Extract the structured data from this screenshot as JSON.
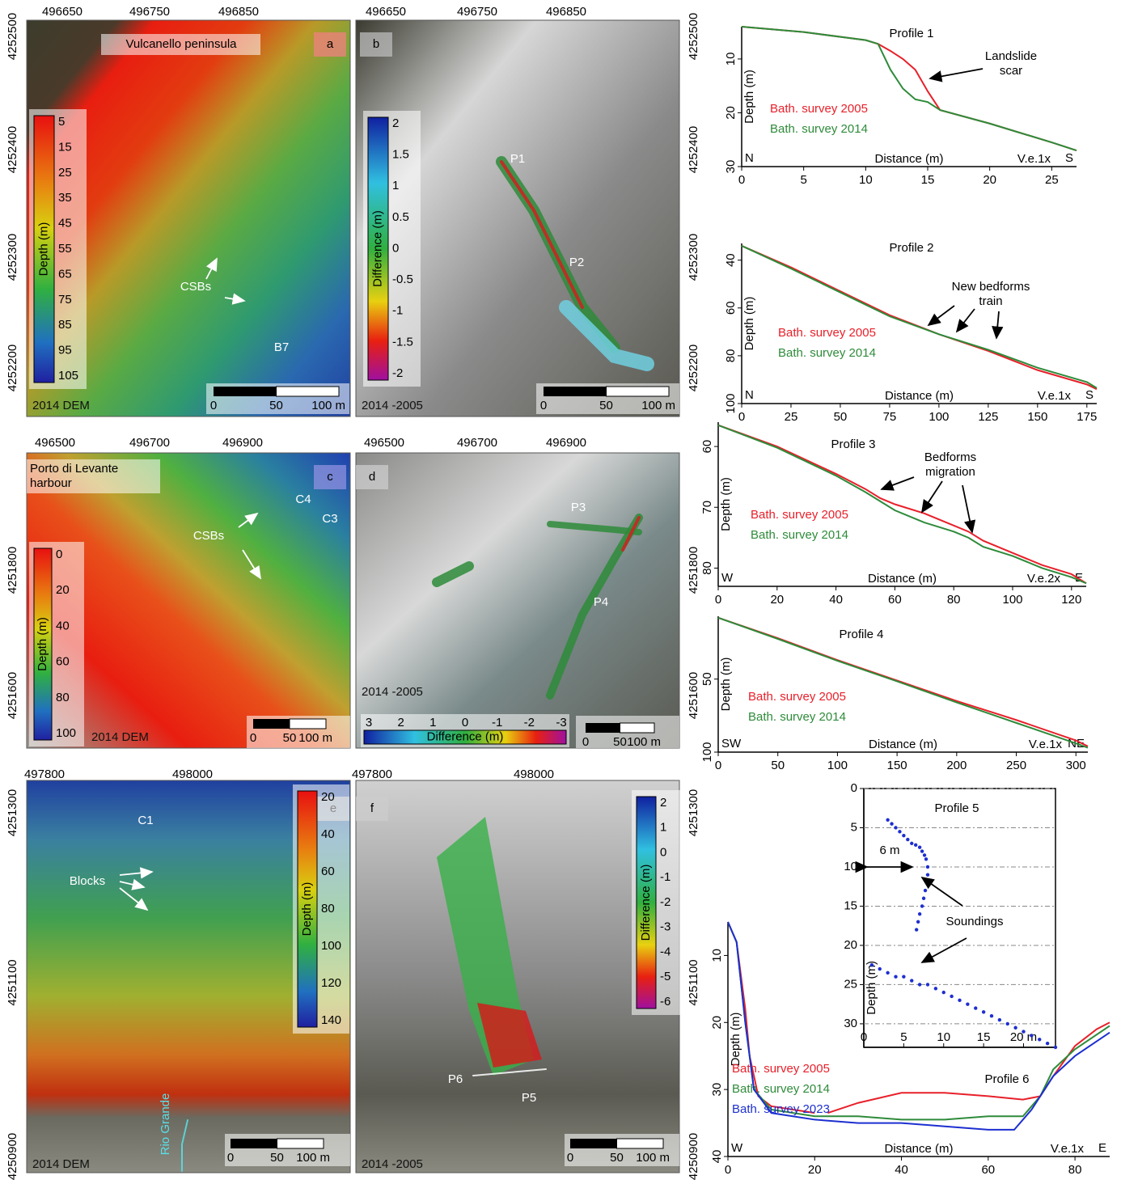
{
  "maps": [
    {
      "letter": "a",
      "title_lines": [
        "Vulcanello peninsula"
      ],
      "corner_label": "2014 DEM",
      "x_ticks": [
        "496650",
        "496750",
        "496850"
      ],
      "y_ticks": [
        "4252500",
        "4252400",
        "4252300",
        "4252200"
      ],
      "colorbar": {
        "label": "Depth (m)",
        "ticks": [
          "5",
          "15",
          "25",
          "35",
          "45",
          "55",
          "65",
          "75",
          "85",
          "95",
          "105"
        ]
      },
      "scale": [
        "0",
        "50",
        "100 m"
      ],
      "labels": [
        "CSBs",
        "B7"
      ]
    },
    {
      "letter": "b",
      "corner_label": "2014 -2005",
      "x_ticks": [
        "496650",
        "496750",
        "496850"
      ],
      "y_ticks": [
        "4252500",
        "4252400",
        "4252300",
        "4252200"
      ],
      "colorbar": {
        "label": "Difference (m)",
        "ticks": [
          "2",
          "1.5",
          "1",
          "0.5",
          "0",
          "-0.5",
          "-1",
          "-1.5",
          "-2"
        ]
      },
      "scale": [
        "0",
        "50",
        "100 m"
      ],
      "labels": [
        "P1",
        "P2"
      ]
    },
    {
      "letter": "c",
      "title_lines": [
        "Porto di Levante",
        "harbour"
      ],
      "corner_label": "2014 DEM",
      "x_ticks": [
        "496500",
        "496700",
        "496900"
      ],
      "y_ticks": [
        "4251800",
        "4251600"
      ],
      "colorbar": {
        "label": "Depth (m)",
        "ticks": [
          "0",
          "20",
          "40",
          "60",
          "80",
          "100"
        ]
      },
      "scale": [
        "0",
        "50",
        "100 m"
      ],
      "labels": [
        "CSBs",
        "C4",
        "C3"
      ]
    },
    {
      "letter": "d",
      "corner_label": "2014 -2005",
      "x_ticks": [
        "496500",
        "496700",
        "496900"
      ],
      "y_ticks": [
        "4251800",
        "4251600"
      ],
      "colorbar": {
        "label": "Difference (m)",
        "ticks": [
          "3",
          "2",
          "1",
          "0",
          "-1",
          "-2",
          "-3"
        ]
      },
      "scale": [
        "0",
        "50",
        "100 m"
      ],
      "labels": [
        "P3",
        "P4"
      ]
    },
    {
      "letter": "e",
      "corner_label": "2014 DEM",
      "x_ticks": [
        "497800",
        "498000"
      ],
      "y_ticks": [
        "4251300",
        "4251100",
        "4250900"
      ],
      "colorbar": {
        "label": "Depth (m)",
        "ticks": [
          "20",
          "40",
          "60",
          "80",
          "100",
          "120",
          "140"
        ]
      },
      "scale": [
        "0",
        "50",
        "100 m"
      ],
      "labels": [
        "C1",
        "Blocks",
        "Rio Grande"
      ]
    },
    {
      "letter": "f",
      "corner_label": "2014 -2005",
      "x_ticks": [
        "497800",
        "498000"
      ],
      "y_ticks": [
        "4251300",
        "4251100",
        "4250900"
      ],
      "colorbar": {
        "label": "Difference (m)",
        "ticks": [
          "2",
          "1",
          "0",
          "-1",
          "-2",
          "-3",
          "-4",
          "-5",
          "-6"
        ]
      },
      "scale": [
        "0",
        "50",
        "100 m"
      ],
      "labels": [
        "P6",
        "P5"
      ]
    }
  ],
  "chart_data": [
    {
      "type": "line",
      "title": "Profile 1",
      "x_label": "Distance (m)",
      "y_label": "Depth (m)",
      "left_label": "N",
      "right_label": "S",
      "exaggeration": "V.e.1x",
      "y_inverted": true,
      "xlim": [
        0,
        27
      ],
      "ylim": [
        4,
        30
      ],
      "xticks": [
        0,
        5,
        10,
        15,
        20,
        25
      ],
      "yticks": [
        10,
        20,
        30
      ],
      "series": [
        {
          "name": "Bath. survey 2005",
          "color": "#e8202a",
          "x": [
            0,
            5,
            10,
            11,
            12,
            13,
            14,
            15,
            16,
            20,
            25,
            27
          ],
          "values": [
            4,
            5,
            6.5,
            7.2,
            8.5,
            10,
            12,
            16,
            19.5,
            22,
            25.5,
            27
          ]
        },
        {
          "name": "Bath. survey 2014",
          "color": "#2e8b3a",
          "x": [
            0,
            5,
            10,
            11,
            12,
            13,
            14,
            15,
            16,
            20,
            25,
            27
          ],
          "values": [
            4,
            5,
            6.5,
            7.2,
            12,
            15.5,
            17.5,
            18,
            19.5,
            22,
            25.5,
            27
          ]
        }
      ],
      "annotations": [
        {
          "lines": [
            "Landslide",
            "scar"
          ]
        }
      ]
    },
    {
      "type": "line",
      "title": "Profile 2",
      "x_label": "Distance (m)",
      "y_label": "Depth (m)",
      "left_label": "N",
      "right_label": "S",
      "exaggeration": "V.e.1x",
      "y_inverted": true,
      "xlim": [
        0,
        180
      ],
      "ylim": [
        33,
        100
      ],
      "xticks": [
        0,
        25,
        50,
        75,
        100,
        125,
        150,
        175
      ],
      "yticks": [
        40,
        60,
        80,
        100
      ],
      "series": [
        {
          "name": "Bath. survey 2005",
          "color": "#e8202a",
          "x": [
            0,
            25,
            50,
            75,
            100,
            125,
            150,
            175,
            180
          ],
          "values": [
            34,
            43,
            53,
            63,
            71,
            78,
            86,
            92,
            94
          ]
        },
        {
          "name": "Bath. survey 2014",
          "color": "#2e8b3a",
          "x": [
            0,
            25,
            50,
            75,
            100,
            125,
            150,
            175,
            180
          ],
          "values": [
            34,
            43.5,
            53.5,
            63.5,
            71,
            77.5,
            85,
            91,
            93.5
          ]
        }
      ],
      "annotations": [
        {
          "lines": [
            "New bedforms",
            "train"
          ]
        }
      ]
    },
    {
      "type": "line",
      "title": "Profile 3",
      "x_label": "Distance (m)",
      "y_label": "Depth (m)",
      "left_label": "W",
      "right_label": "E",
      "exaggeration": "V.e.2x",
      "y_inverted": true,
      "xlim": [
        0,
        125
      ],
      "ylim": [
        56,
        83
      ],
      "xticks": [
        0,
        20,
        40,
        60,
        80,
        100,
        120
      ],
      "yticks": [
        60,
        70,
        80
      ],
      "series": [
        {
          "name": "Bath. survey 2005",
          "color": "#e8202a",
          "x": [
            0,
            20,
            40,
            50,
            55,
            60,
            70,
            80,
            85,
            90,
            100,
            110,
            120,
            125
          ],
          "values": [
            56.5,
            60,
            64.5,
            67,
            68.5,
            69.5,
            71,
            73,
            74,
            75.5,
            77.5,
            79.5,
            81,
            82.5
          ]
        },
        {
          "name": "Bath. survey 2014",
          "color": "#2e8b3a",
          "x": [
            0,
            20,
            40,
            50,
            55,
            60,
            70,
            80,
            85,
            90,
            100,
            110,
            120,
            125
          ],
          "values": [
            56.5,
            60.2,
            64.8,
            67.5,
            69,
            70.5,
            72.5,
            74,
            75,
            76.5,
            78,
            80,
            81.5,
            82.5
          ]
        }
      ],
      "annotations": [
        {
          "lines": [
            "Bedforms",
            "migration"
          ]
        }
      ]
    },
    {
      "type": "line",
      "title": "Profile 4",
      "x_label": "Distance (m)",
      "y_label": "Depth (m)",
      "left_label": "SW",
      "right_label": "NE",
      "exaggeration": "V.e.1x",
      "y_inverted": true,
      "xlim": [
        0,
        310
      ],
      "ylim": [
        7,
        100
      ],
      "xticks": [
        0,
        50,
        100,
        150,
        200,
        250,
        300
      ],
      "yticks": [
        50,
        100
      ],
      "series": [
        {
          "name": "Bath. survey 2005",
          "color": "#e8202a",
          "x": [
            0,
            50,
            100,
            150,
            200,
            250,
            300,
            310
          ],
          "values": [
            8,
            22,
            37,
            51,
            65,
            78,
            92,
            96
          ]
        },
        {
          "name": "Bath. survey 2014",
          "color": "#2e8b3a",
          "x": [
            0,
            50,
            100,
            150,
            200,
            250,
            300,
            310
          ],
          "values": [
            8,
            22.5,
            37.5,
            51.5,
            66,
            80,
            94,
            97
          ]
        }
      ],
      "annotations": []
    },
    {
      "type": "scatter",
      "title": "Profile 5",
      "y_label": "Depth (m)",
      "y_inverted": true,
      "frame": true,
      "grid": true,
      "xlim": [
        0,
        24
      ],
      "ylim": [
        0,
        33
      ],
      "xticks": [
        0,
        5,
        10,
        15,
        {
          "value": 20,
          "label": "20 m"
        }
      ],
      "yticks": [
        0,
        5,
        10,
        15,
        20,
        25,
        30
      ],
      "series": [
        {
          "name": "Soundings",
          "color": "#1d2fd0",
          "x": [
            3,
            3.5,
            4,
            4.5,
            5,
            5.5,
            6,
            6.5,
            7,
            7.3,
            7.6,
            7.8,
            8,
            8,
            7.9,
            7.7,
            7.5,
            7.3,
            7,
            6.8,
            6.6,
            1,
            2,
            3,
            4,
            5,
            6,
            7,
            8,
            9,
            10,
            11,
            12,
            13,
            14,
            15,
            16,
            17,
            18,
            19,
            20,
            21,
            22,
            23,
            24
          ],
          "values": [
            4,
            4.5,
            5,
            5.5,
            6,
            6.5,
            7,
            7.2,
            7.5,
            8,
            8.5,
            9,
            10,
            11,
            12,
            13,
            14,
            15,
            16,
            17,
            18,
            22.5,
            23,
            23.5,
            24,
            24,
            24.5,
            25,
            25,
            25.5,
            26,
            26.5,
            27,
            27.5,
            28,
            28.5,
            29,
            29.5,
            30,
            30.5,
            31,
            31.5,
            32,
            32.5,
            33
          ]
        }
      ],
      "annotations": [
        {
          "lines": [
            "6 m"
          ]
        },
        {
          "lines": [
            "Soundings"
          ]
        }
      ]
    },
    {
      "type": "line",
      "title": "Profile 6",
      "x_label": "Distance (m)",
      "y_label": "Depth (m)",
      "left_label": "W",
      "right_label": "E",
      "exaggeration": "V.e.1x",
      "y_inverted": true,
      "xlim": [
        0,
        88
      ],
      "ylim": [
        5,
        40
      ],
      "xticks": [
        0,
        20,
        40,
        60,
        80
      ],
      "yticks": [
        10,
        20,
        30,
        40
      ],
      "series": [
        {
          "name": "Bath. survey 2005",
          "color": "#e8202a",
          "x": [
            0,
            2,
            4,
            5,
            7,
            10,
            15,
            20,
            22,
            23,
            30,
            40,
            50,
            60,
            68,
            72,
            75,
            80,
            85,
            88
          ],
          "values": [
            5,
            8,
            18,
            25,
            31,
            32.5,
            33,
            33.5,
            null,
            33.5,
            32,
            30.5,
            30.5,
            31,
            31.5,
            31,
            28,
            23.5,
            21,
            20
          ]
        },
        {
          "name": "Bath. survey 2014",
          "color": "#2e8b3a",
          "x": [
            0,
            2,
            4,
            6,
            10,
            20,
            30,
            40,
            50,
            60,
            68,
            72,
            75,
            80,
            88
          ],
          "values": [
            5,
            8,
            20,
            30,
            33,
            34,
            34,
            34.5,
            34.5,
            34,
            34,
            31,
            27,
            24,
            20.5
          ]
        },
        {
          "name": "Bath. survey 2023",
          "color": "#1d2fd0",
          "x": [
            0,
            2,
            4,
            6,
            10,
            20,
            30,
            40,
            50,
            60,
            66,
            70,
            75,
            80,
            88
          ],
          "values": [
            5,
            8,
            20,
            30,
            33.5,
            34.5,
            35,
            35,
            35.5,
            36,
            36,
            33,
            28,
            25,
            21.5
          ]
        }
      ],
      "annotations": []
    }
  ]
}
